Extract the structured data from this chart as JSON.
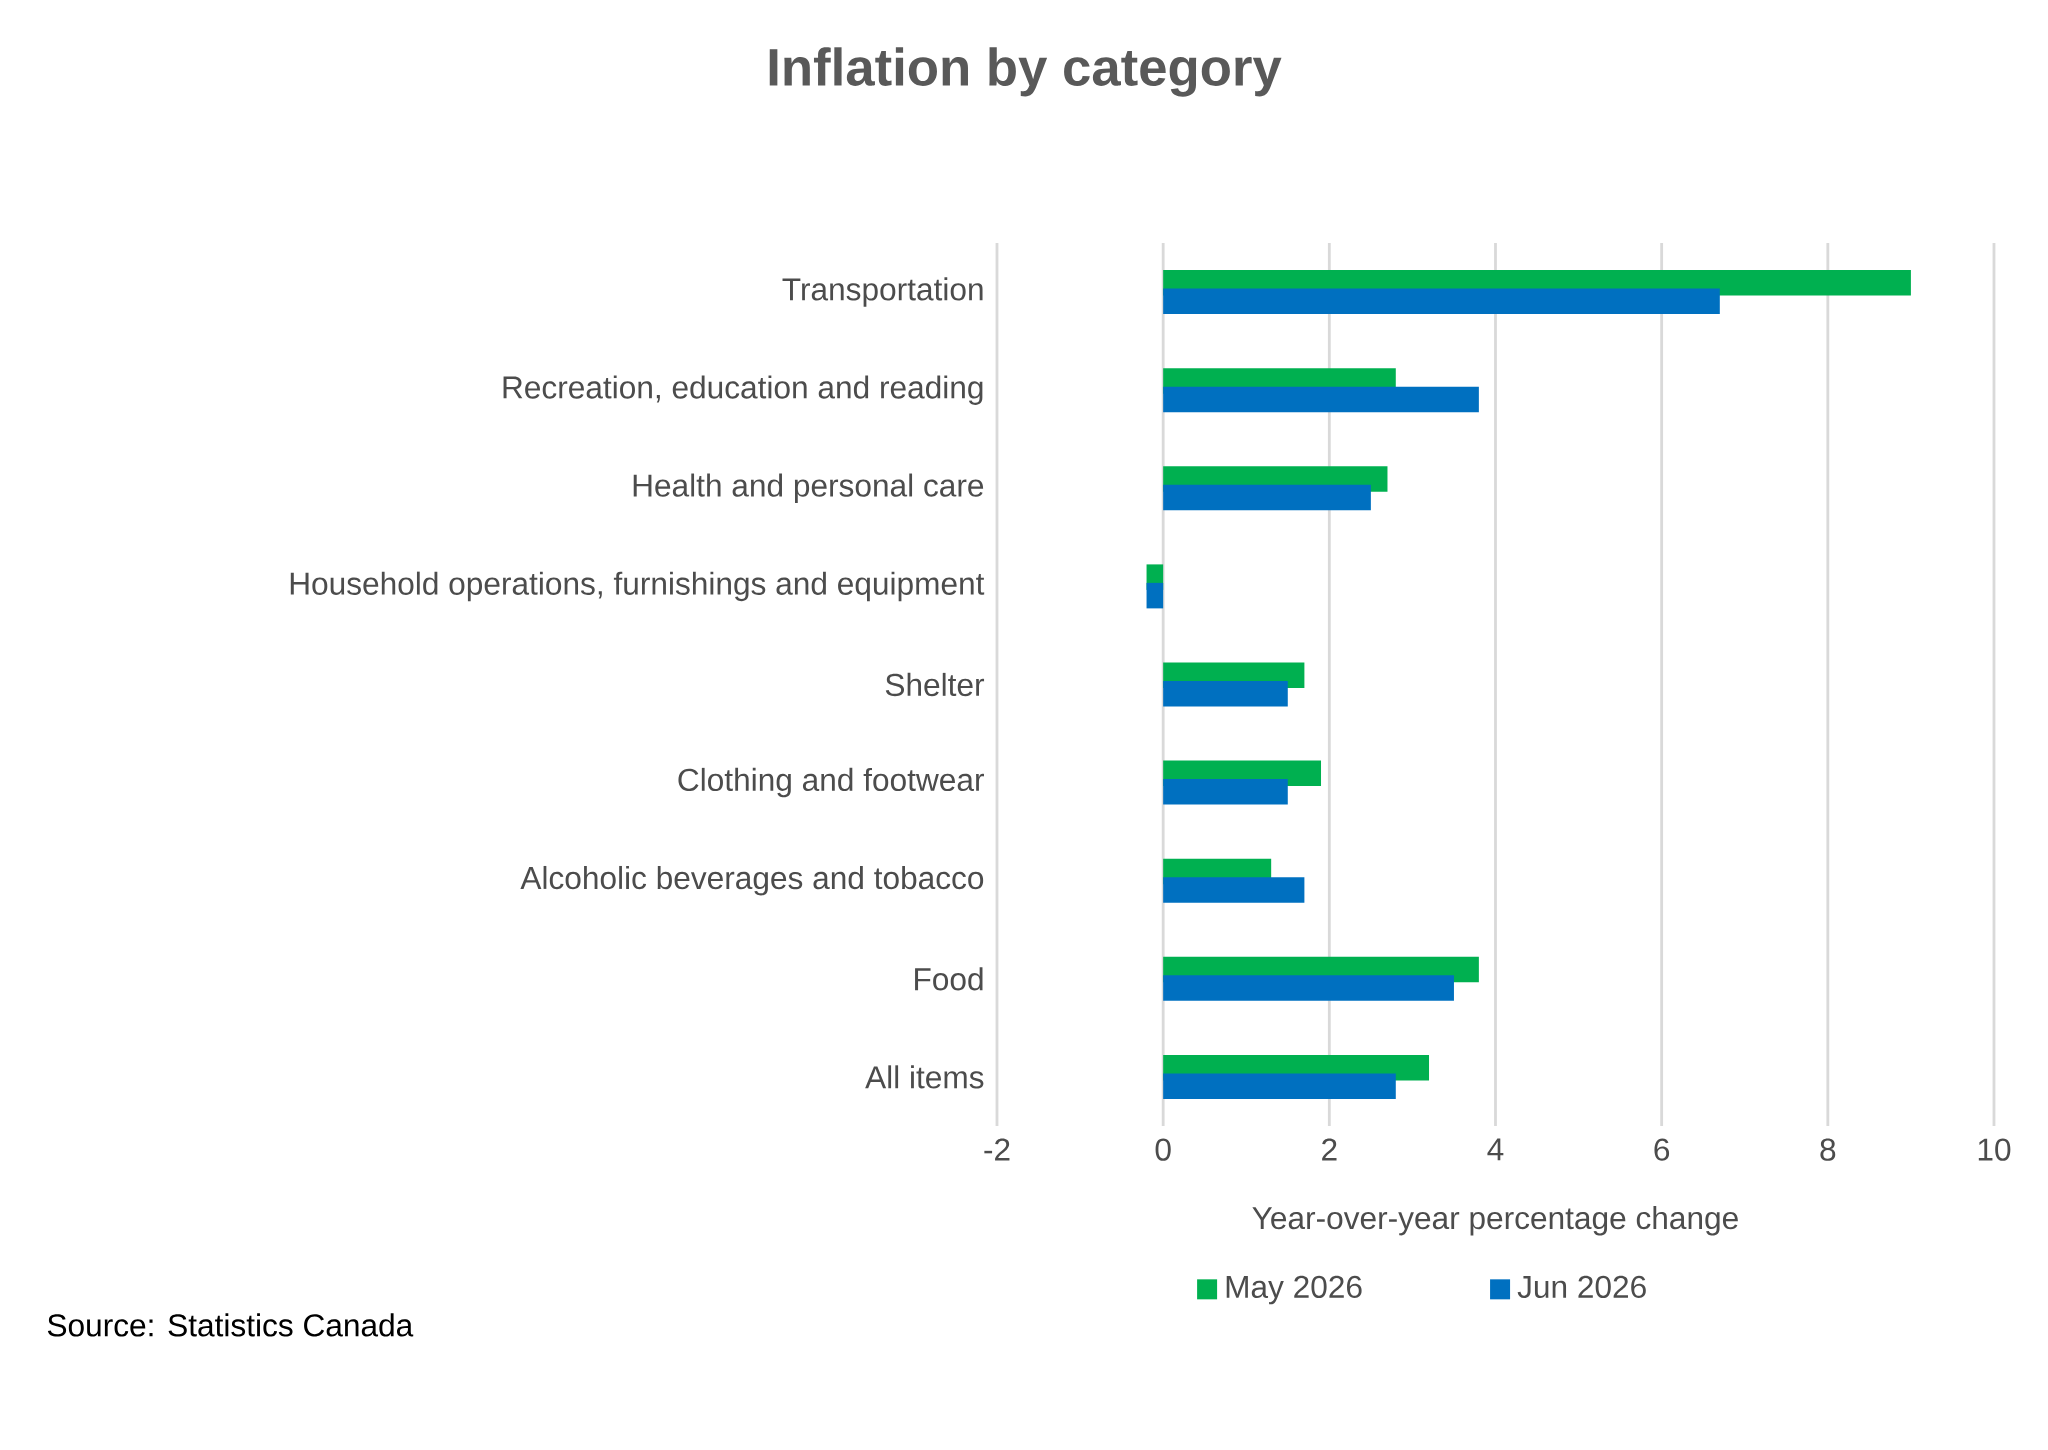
{
  "chart_data": {
    "type": "bar",
    "orientation": "horizontal",
    "title": "Inflation by category",
    "xlabel": "Year-over-year percentage change",
    "categories": [
      "Transportation",
      "Recreation, education and reading",
      "Health and personal care",
      "Household operations, furnishings and equipment",
      "Shelter",
      "Clothing and footwear",
      "Alcoholic beverages and tobacco",
      "Food",
      "All items"
    ],
    "series": [
      {
        "name": "May 2026",
        "color": "#00b050",
        "values": [
          9.0,
          2.8,
          2.7,
          -0.2,
          1.7,
          1.9,
          1.3,
          3.8,
          3.2
        ]
      },
      {
        "name": "Jun 2026",
        "color": "#0070c0",
        "values": [
          6.7,
          3.8,
          2.5,
          -0.2,
          1.5,
          1.5,
          1.7,
          3.5,
          2.8
        ]
      }
    ],
    "xlim": [
      -2,
      10
    ],
    "xticks": [
      -2,
      0,
      2,
      4,
      6,
      8,
      10
    ],
    "grid": "x",
    "legend": "bottom",
    "annotations": [
      "Source: Statistics Canada"
    ]
  }
}
